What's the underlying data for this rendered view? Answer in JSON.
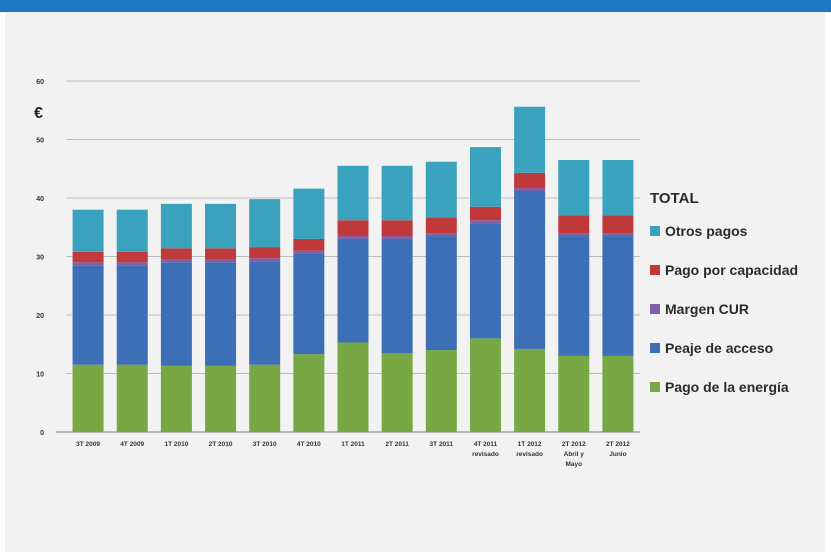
{
  "chart_data": {
    "type": "bar",
    "stacked": true,
    "ylabel": "€",
    "ylim": [
      0,
      60
    ],
    "yticks": [
      0,
      10,
      20,
      30,
      40,
      50,
      60
    ],
    "grid": true,
    "legend_position": "right",
    "legend_title": "TOTAL",
    "categories": [
      [
        "3T 2009"
      ],
      [
        "4T 2009"
      ],
      [
        "1T 2010"
      ],
      [
        "2T 2010"
      ],
      [
        "3T 2010"
      ],
      [
        "4T 2010"
      ],
      [
        "1T 2011"
      ],
      [
        "2T 2011"
      ],
      [
        "3T 2011"
      ],
      [
        "4T 2011",
        "revisado"
      ],
      [
        "1T 2012",
        "revisado"
      ],
      [
        "2T 2012",
        "Abril y",
        "Mayo"
      ],
      [
        "2T 2012",
        "Junio"
      ]
    ],
    "series": [
      {
        "name": "Pago de la energía",
        "color": "#77a843",
        "values": [
          11.5,
          11.5,
          11.3,
          11.3,
          11.5,
          13.3,
          15.3,
          13.5,
          14.0,
          16.0,
          14.2,
          13.0,
          13.0
        ]
      },
      {
        "name": "Peaje de acceso",
        "color": "#3d6fb6",
        "values": [
          17.0,
          17.0,
          17.7,
          17.7,
          17.7,
          17.2,
          17.7,
          19.5,
          19.5,
          19.7,
          27.0,
          20.5,
          20.5
        ]
      },
      {
        "name": "Margen CUR",
        "color": "#7f5fa6",
        "values": [
          0.5,
          0.5,
          0.5,
          0.5,
          0.5,
          0.5,
          0.5,
          0.5,
          0.5,
          0.5,
          0.5,
          0.5,
          0.5
        ]
      },
      {
        "name": "Pago por capacidad",
        "color": "#c0393b",
        "values": [
          1.8,
          1.8,
          1.9,
          1.9,
          1.9,
          2.0,
          2.7,
          2.7,
          2.7,
          2.3,
          2.6,
          3.0,
          3.0
        ]
      },
      {
        "name": "Otros pagos",
        "color": "#3ba2bd",
        "values": [
          7.2,
          7.2,
          7.6,
          7.6,
          8.2,
          8.6,
          9.3,
          9.3,
          9.5,
          10.2,
          11.3,
          9.5,
          9.5
        ]
      }
    ]
  }
}
